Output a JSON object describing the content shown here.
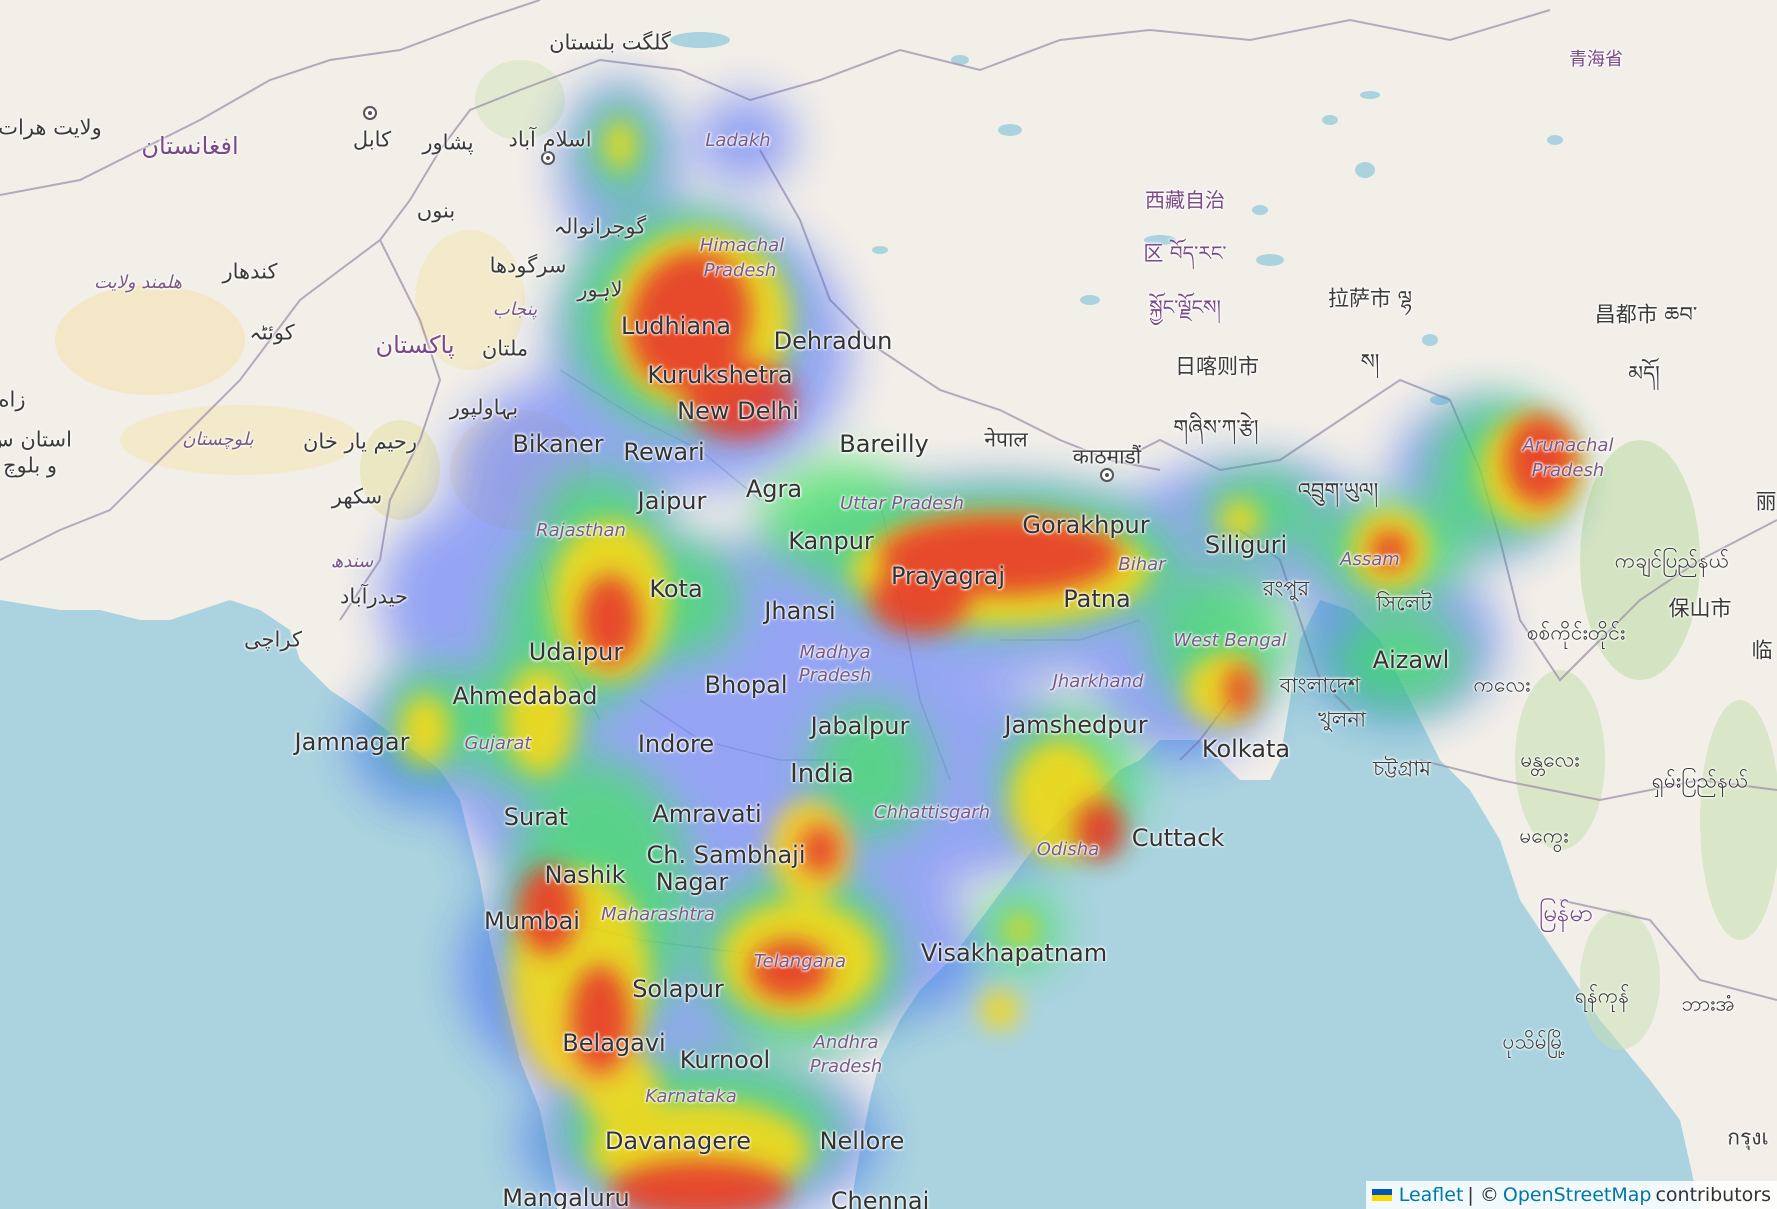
{
  "map": {
    "colors": {
      "sea": "#aad3df",
      "land": "#f2efe9",
      "desert": "#f3e4b8",
      "forest": "#c8dfb1",
      "border": "#9a8ca6",
      "heat_low": "#3b5cff",
      "heat_mid": "#35e05a",
      "heat_high": "#ffd600",
      "heat_max": "#e6281e"
    },
    "labels": {
      "gilgit": "گلگت بلتستان",
      "ladakh": "Ladakh",
      "herat": "ولایت هرات",
      "afghanistan": "افغانستان",
      "kabul": "کابل",
      "peshawar": "پشاور",
      "islamabad": "اسلام آباد",
      "bannu": "بنوں",
      "gujranwala": "گوجرانوالہ",
      "himachal": "Himachal",
      "pradesh_hp": "Pradesh",
      "kandahar": "کندھار",
      "helmand": "هلمند ولایت",
      "sargodha": "سرگودھا",
      "lahore": "لاہور",
      "punjab_pk": "پنجاب",
      "quetta": "کوئٹہ",
      "pakistan": "پاکستان",
      "multan": "ملتان",
      "ludhiana": "Ludhiana",
      "dehradun": "Dehradun",
      "kurukshetra": "Kurukshetra",
      "zahedan": "زاه",
      "balochistan_ir1": "استان س",
      "balochistan_ir2": "و بلوچ",
      "bahawalpur": "بہاولپور",
      "balochistan_pk": "بلوچستان",
      "rahim_yar_khan": "رحیم یار خان",
      "new_delhi": "New Delhi",
      "bikaner": "Bikaner",
      "rewari": "Rewari",
      "bareilly": "Bareilly",
      "nepal": "नेपाल",
      "sukkur": "سکھر",
      "jaipur": "Jaipur",
      "agra": "Agra",
      "uttar_pradesh": "Uttar Pradesh",
      "kathmandu": "काठमाडौं",
      "rajasthan": "Rajasthan",
      "kanpur": "Kanpur",
      "gorakhpur": "Gorakhpur",
      "sindh": "سندھ",
      "hyderabad_pk": "حیدرآباد",
      "karachi": "کراچی",
      "kota": "Kota",
      "prayagraj": "Prayagraj",
      "bihar": "Bihar",
      "patna": "Patna",
      "siliguri": "Siliguri",
      "jhansi": "Jhansi",
      "udaipur": "Udaipur",
      "madhya": "Madhya",
      "pradesh_mp": "Pradesh",
      "bhopal": "Bhopal",
      "ahmedabad": "Ahmedabad",
      "jamnagar": "Jamnagar",
      "gujarat": "Gujarat",
      "indore": "Indore",
      "jabalpur": "Jabalpur",
      "india": "India",
      "jharkhand": "Jharkhand",
      "jamshedpur": "Jamshedpur",
      "west_bengal": "West Bengal",
      "bangladesh": "বাংলাদেশ",
      "khulna": "খুলনা",
      "kolkata": "Kolkata",
      "chattogram": "চট্টগ্রাম",
      "surat": "Surat",
      "amravati": "Amravati",
      "chhattisgarh": "Chhattisgarh",
      "odisha": "Odisha",
      "cuttack": "Cuttack",
      "sambhaji1": "Ch. Sambhaji",
      "sambhaji2": "Nagar",
      "nashik": "Nashik",
      "maharashtra": "Maharashtra",
      "mumbai": "Mumbai",
      "visakhapatnam": "Visakhapatnam",
      "telangana": "Telangana",
      "solapur": "Solapur",
      "belagavi": "Belagavi",
      "kurnool": "Kurnool",
      "andhra1": "Andhra",
      "andhra2": "Pradesh",
      "karnataka": "Karnataka",
      "davanagere": "Davanagere",
      "nellore": "Nellore",
      "mangaluru": "Mangaluru",
      "chennai": "Chennai",
      "tibet1": "西藏自治",
      "tibet2": "区 བོད་རང་",
      "tibet3": "སྐྱོང་ལྗོངས།",
      "lhasa": "拉萨市 ལྷ",
      "lhasa2": "ས།",
      "shigatse": "日喀则市",
      "shigatse_tib": "གཞིས་ཀ་རྩེ།",
      "bhutan": "འབྲུག་ཡུལ།",
      "qinghai": "青海省",
      "chamdo": "昌都市 ཆབ་",
      "chamdo2": "མདོ།",
      "arunachal": "Arunachal",
      "arunachal2": "Pradesh",
      "assam": "Assam",
      "rangpur": "রংপুর",
      "sylhet": "সিলেট",
      "aizawl": "Aizawl",
      "kachin": "ကချင်ပြည်နယ်",
      "baoshan": "保山市",
      "lincang": "临",
      "sagaing": "စစ်ကိုင်းတိုင်း",
      "kale": "ကလေး",
      "mandalay": "မန္တလေး",
      "shan": "ရှမ်းပြည်နယ်",
      "magway": "မကွေး",
      "myanmar": "မြန်မာ",
      "yangon": "ရန်ကုန်",
      "pathein": "ပုသိမ်မြို့",
      "bagan": "ဘားအံ",
      "china_edge": "丽",
      "thai": "กรุงเ"
    },
    "attribution": {
      "leaflet": "Leaflet",
      "separator": " | © ",
      "osm": "OpenStreetMap",
      "suffix": " contributors"
    }
  }
}
